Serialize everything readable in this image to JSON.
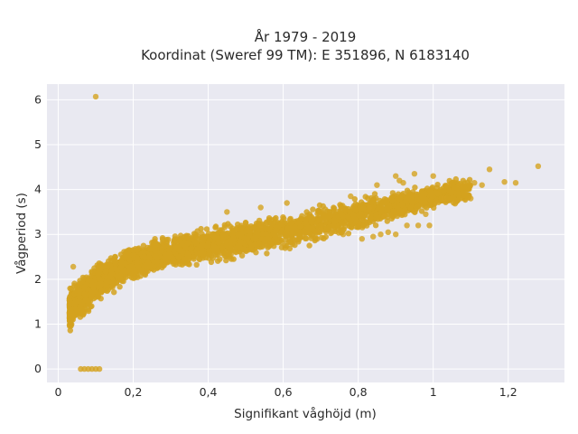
{
  "chart_data": {
    "type": "scatter",
    "title_line1": "År 1979 - 2019",
    "title_line2": "Koordinat (Sweref 99 TM): E 351896, N 6183140",
    "xlabel": "Signifikant våghöjd (m)",
    "ylabel": "Vågperiod (s)",
    "xlim": [
      -0.03,
      1.35
    ],
    "ylim": [
      -0.3,
      6.35
    ],
    "x_ticks": [
      0,
      0.2,
      0.4,
      0.6,
      0.8,
      1,
      1.2
    ],
    "x_tick_labels": [
      "0",
      "0,2",
      "0,4",
      "0,6",
      "0,8",
      "1",
      "1,2"
    ],
    "y_ticks": [
      0,
      1,
      2,
      3,
      4,
      5,
      6
    ],
    "y_tick_labels": [
      "0",
      "1",
      "2",
      "3",
      "4",
      "5",
      "6"
    ],
    "grid": true,
    "background_color": "#e9e9f1",
    "point_color": "#d4a21f",
    "series": [
      {
        "trend": [
          [
            0.03,
            1.3
          ],
          [
            0.05,
            1.5
          ],
          [
            0.08,
            1.72
          ],
          [
            0.1,
            1.9
          ],
          [
            0.15,
            2.15
          ],
          [
            0.2,
            2.35
          ],
          [
            0.3,
            2.6
          ],
          [
            0.4,
            2.75
          ],
          [
            0.5,
            2.9
          ],
          [
            0.6,
            3.05
          ],
          [
            0.7,
            3.25
          ],
          [
            0.8,
            3.45
          ],
          [
            0.9,
            3.65
          ],
          [
            1.0,
            3.85
          ],
          [
            1.1,
            4.0
          ]
        ],
        "spread": 0.55,
        "outliers": [
          [
            0.1,
            6.07
          ],
          [
            0.04,
            2.28
          ],
          [
            0.06,
            0.0
          ],
          [
            0.07,
            0.0
          ],
          [
            0.08,
            0.0
          ],
          [
            0.09,
            0.0
          ],
          [
            0.1,
            0.0
          ],
          [
            0.11,
            0.0
          ],
          [
            1.28,
            4.52
          ],
          [
            1.22,
            4.15
          ],
          [
            1.19,
            4.17
          ],
          [
            1.15,
            4.45
          ],
          [
            1.13,
            4.1
          ],
          [
            1.11,
            4.15
          ],
          [
            1.1,
            3.8
          ],
          [
            1.07,
            4.1
          ],
          [
            1.04,
            4.1
          ],
          [
            1.0,
            4.3
          ],
          [
            0.95,
            4.35
          ],
          [
            0.9,
            4.3
          ],
          [
            0.96,
            3.2
          ],
          [
            0.99,
            3.2
          ],
          [
            0.93,
            3.2
          ],
          [
            0.88,
            3.05
          ],
          [
            0.86,
            3.0
          ],
          [
            0.84,
            2.95
          ],
          [
            0.81,
            2.9
          ],
          [
            0.9,
            3.0
          ],
          [
            0.76,
            3.0
          ],
          [
            0.73,
            3.05
          ],
          [
            0.7,
            3.1
          ],
          [
            0.61,
            3.7
          ],
          [
            0.54,
            3.6
          ],
          [
            0.45,
            3.5
          ],
          [
            0.54,
            3.2
          ],
          [
            0.5,
            3.25
          ],
          [
            0.92,
            4.15
          ],
          [
            0.85,
            4.1
          ],
          [
            0.78,
            3.85
          ],
          [
            1.03,
            3.8
          ],
          [
            0.83,
            3.6
          ],
          [
            0.87,
            3.4
          ],
          [
            0.95,
            3.5
          ],
          [
            0.98,
            3.45
          ],
          [
            0.91,
            4.2
          ]
        ]
      }
    ]
  }
}
